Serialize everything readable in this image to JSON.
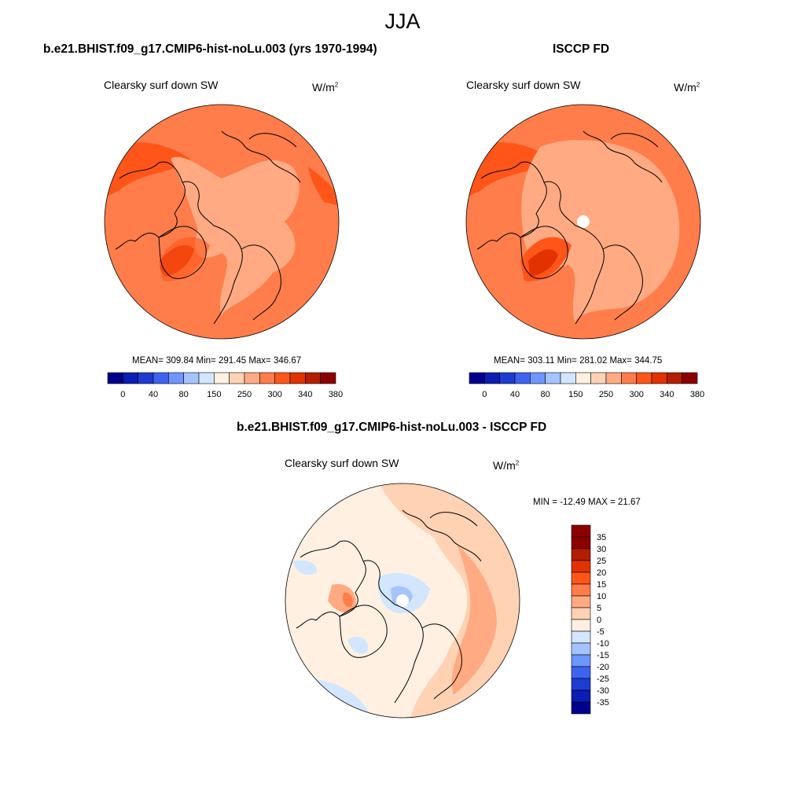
{
  "page": {
    "season": "JJA"
  },
  "panels": [
    {
      "title": "b.e21.BHIST.f09_g17.CMIP6-hist-noLu.003 (yrs 1970-1994)",
      "variable": "Clearsky surf down SW",
      "units": "W/m",
      "units_exp": "2",
      "mean": "309.84",
      "min": "291.45",
      "max": "346.67",
      "stats_line": "MEAN= 309.84  Min= 291.45  Max= 346.67"
    },
    {
      "title": "ISCCP FD",
      "variable": "Clearsky surf down SW",
      "units": "W/m",
      "units_exp": "2",
      "mean": "303.11",
      "min": "281.02",
      "max": "344.75",
      "stats_line": "MEAN= 303.11  Min= 281.02  Max= 344.75"
    }
  ],
  "diff_panel": {
    "title": "b.e21.BHIST.f09_g17.CMIP6-hist-noLu.003 - ISCCP FD",
    "variable": "Clearsky surf down SW",
    "units": "W/m",
    "units_exp": "2",
    "min": "-12.49",
    "max": "21.67",
    "minmax_line": "MIN = -12.49 MAX =  21.67"
  },
  "colorbar_abs": {
    "orientation": "horizontal",
    "labels": [
      "0",
      "40",
      "80",
      "150",
      "250",
      "300",
      "340",
      "380"
    ],
    "colors": [
      "#00008c",
      "#0a1db4",
      "#1e3cd2",
      "#3c64f0",
      "#6e96ff",
      "#a5c3ff",
      "#d2e6ff",
      "#fff0e1",
      "#ffd2b4",
      "#ffaa82",
      "#ff7d4b",
      "#ff5519",
      "#e13200",
      "#b41e00",
      "#8c0000"
    ]
  },
  "colorbar_diff": {
    "orientation": "vertical",
    "labels": [
      "35",
      "30",
      "25",
      "20",
      "15",
      "10",
      "5",
      "0",
      "-5",
      "-10",
      "-15",
      "-20",
      "-25",
      "-30",
      "-35"
    ],
    "colors": [
      "#8c0000",
      "#b41e00",
      "#e13200",
      "#ff5519",
      "#ff7d4b",
      "#ffaa82",
      "#ffd2b4",
      "#fff0e1",
      "#d2e6ff",
      "#a5c3ff",
      "#6e96ff",
      "#3c64f0",
      "#1e3cd2",
      "#0a1db4",
      "#00008c"
    ]
  },
  "map_colors": {
    "c300": "#ff7d4b",
    "c340": "#ff5519",
    "c380": "#e13200",
    "c250": "#ffaa82",
    "d5": "#fff0e1",
    "d10": "#ffd2b4",
    "d15": "#ffaa82",
    "d20": "#ff7d4b",
    "dneg5": "#d2e6ff",
    "dneg10": "#a5c3ff",
    "coast": "#000000"
  }
}
